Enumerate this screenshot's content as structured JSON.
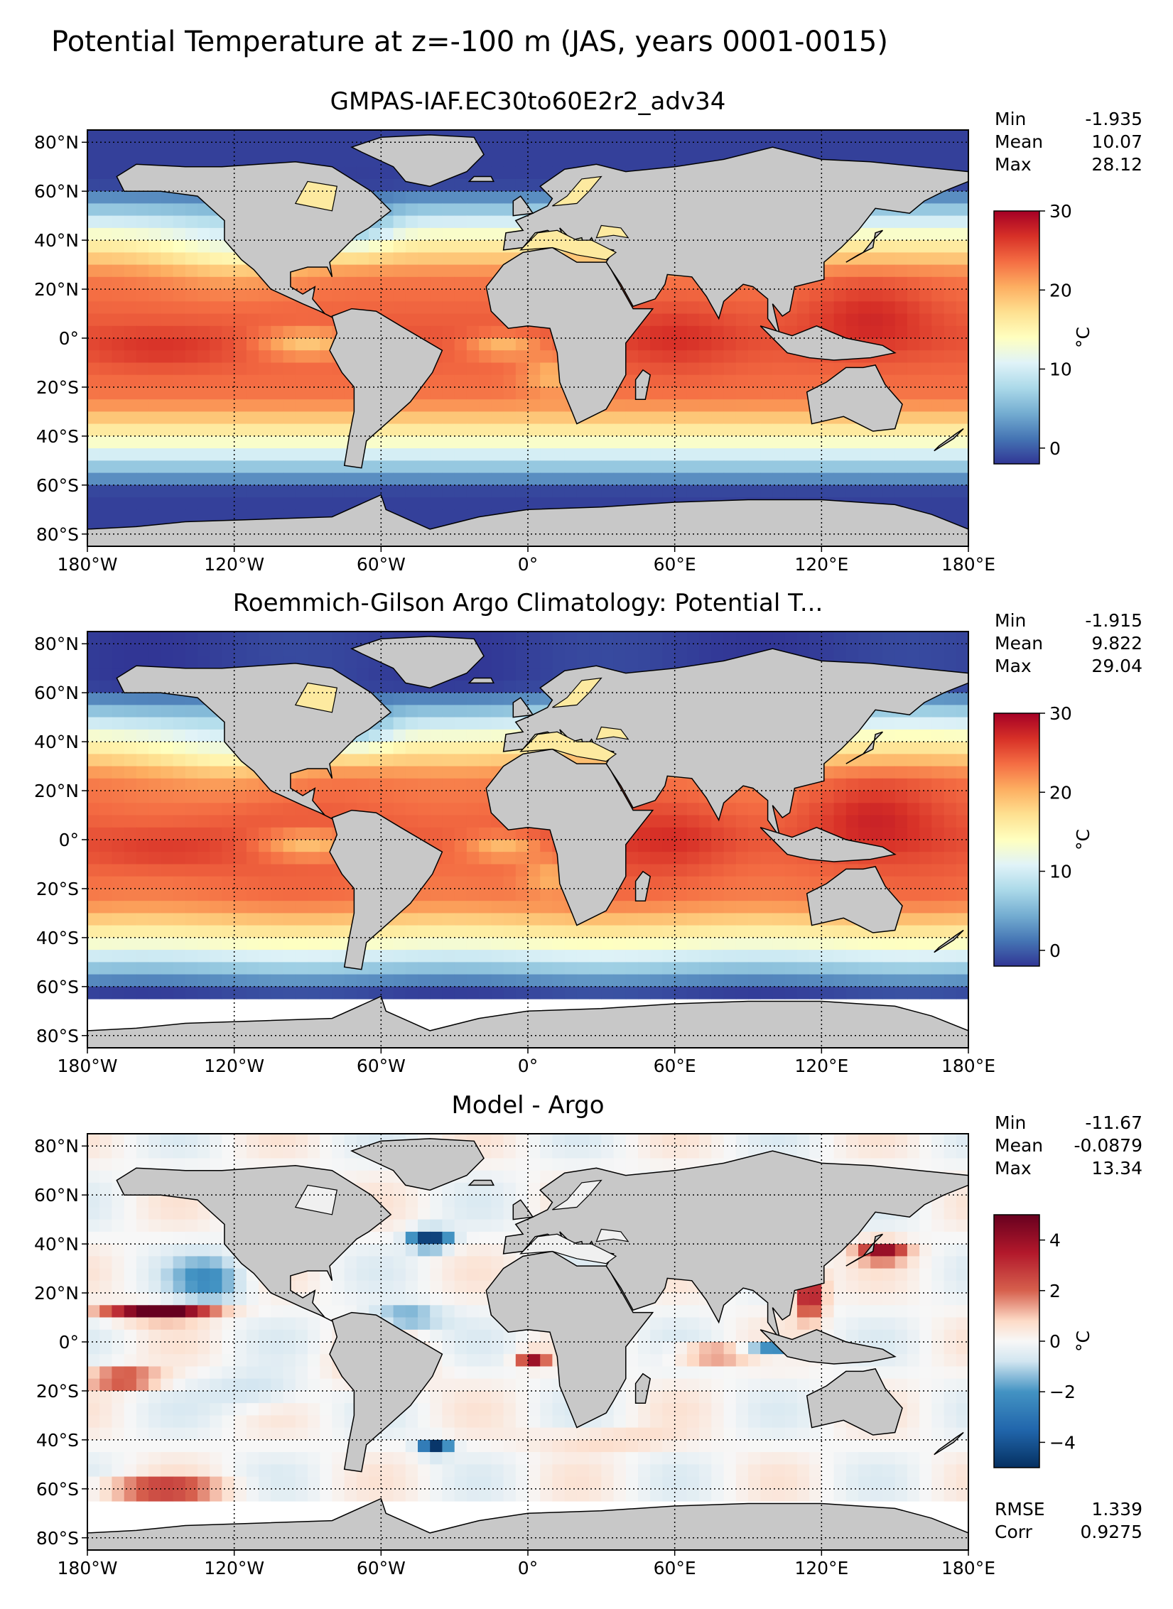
{
  "figure": {
    "suptitle": "Potential Temperature at z=-100 m (JAS, years 0001-0015)"
  },
  "colors": {
    "land": "#c8c8c8",
    "no_data": "#ffffff",
    "coast": "#000000",
    "grid": "#000000"
  },
  "chart_data": [
    {
      "type": "heatmap",
      "title": "GMPAS-IAF.EC30to60E2r2_adv34",
      "xlabel": "",
      "ylabel": "",
      "xlim": [
        -180,
        180
      ],
      "ylim": [
        -85,
        85
      ],
      "x_ticks": [
        -180,
        -120,
        -60,
        0,
        60,
        120,
        180
      ],
      "x_tick_labels": [
        "180°W",
        "120°W",
        "60°W",
        "0°",
        "60°E",
        "120°E",
        "180°E"
      ],
      "y_ticks": [
        80,
        60,
        40,
        20,
        0,
        -20,
        -40,
        -60,
        -80
      ],
      "y_tick_labels": [
        "80°N",
        "60°N",
        "40°N",
        "20°N",
        "0°",
        "20°S",
        "40°S",
        "60°S",
        "80°S"
      ],
      "grid": true,
      "stats": [
        {
          "label": "Min",
          "value": "-1.935"
        },
        {
          "label": "Mean",
          "value": "10.07"
        },
        {
          "label": "Max",
          "value": "28.12"
        }
      ],
      "colorbar": {
        "label": "°C",
        "vmin": -2,
        "vmax": 30,
        "ticks": [
          0,
          10,
          20,
          30
        ],
        "tick_labels": [
          "0",
          "10",
          "20",
          "30"
        ],
        "colormap": "RdYlBu_r"
      },
      "mask_south": -85,
      "field": "model"
    },
    {
      "type": "heatmap",
      "title": "Roemmich-Gilson Argo Climatology: Potential T...",
      "xlabel": "",
      "ylabel": "",
      "xlim": [
        -180,
        180
      ],
      "ylim": [
        -85,
        85
      ],
      "x_ticks": [
        -180,
        -120,
        -60,
        0,
        60,
        120,
        180
      ],
      "x_tick_labels": [
        "180°W",
        "120°W",
        "60°W",
        "0°",
        "60°E",
        "120°E",
        "180°E"
      ],
      "y_ticks": [
        80,
        60,
        40,
        20,
        0,
        -20,
        -40,
        -60,
        -80
      ],
      "y_tick_labels": [
        "80°N",
        "60°N",
        "40°N",
        "20°N",
        "0°",
        "20°S",
        "40°S",
        "60°S",
        "80°S"
      ],
      "grid": true,
      "stats": [
        {
          "label": "Min",
          "value": "-1.915"
        },
        {
          "label": "Mean",
          "value": "9.822"
        },
        {
          "label": "Max",
          "value": "29.04"
        }
      ],
      "colorbar": {
        "label": "°C",
        "vmin": -2,
        "vmax": 30,
        "ticks": [
          0,
          10,
          20,
          30
        ],
        "tick_labels": [
          "0",
          "10",
          "20",
          "30"
        ],
        "colormap": "RdYlBu_r"
      },
      "mask_south": -65,
      "field": "argo"
    },
    {
      "type": "heatmap",
      "title": "Model - Argo",
      "xlabel": "",
      "ylabel": "",
      "xlim": [
        -180,
        180
      ],
      "ylim": [
        -85,
        85
      ],
      "x_ticks": [
        -180,
        -120,
        -60,
        0,
        60,
        120,
        180
      ],
      "x_tick_labels": [
        "180°W",
        "120°W",
        "60°W",
        "0°",
        "60°E",
        "120°E",
        "180°E"
      ],
      "y_ticks": [
        80,
        60,
        40,
        20,
        0,
        -20,
        -40,
        -60,
        -80
      ],
      "y_tick_labels": [
        "80°N",
        "60°N",
        "40°N",
        "20°N",
        "0°",
        "20°S",
        "40°S",
        "60°S",
        "80°S"
      ],
      "grid": true,
      "stats": [
        {
          "label": "Min",
          "value": "-11.67"
        },
        {
          "label": "Mean",
          "value": "-0.0879"
        },
        {
          "label": "Max",
          "value": "13.34"
        }
      ],
      "extra_stats": [
        {
          "label": "RMSE",
          "value": "1.339"
        },
        {
          "label": "Corr",
          "value": "0.9275"
        }
      ],
      "colorbar": {
        "label": "°C",
        "vmin": -5,
        "vmax": 5,
        "ticks": [
          4,
          2,
          0,
          -2,
          -4
        ],
        "tick_labels": [
          "4",
          "2",
          "0",
          "−2",
          "−4"
        ],
        "colormap": "RdBu_r"
      },
      "mask_south": -65,
      "field": "diff"
    }
  ]
}
